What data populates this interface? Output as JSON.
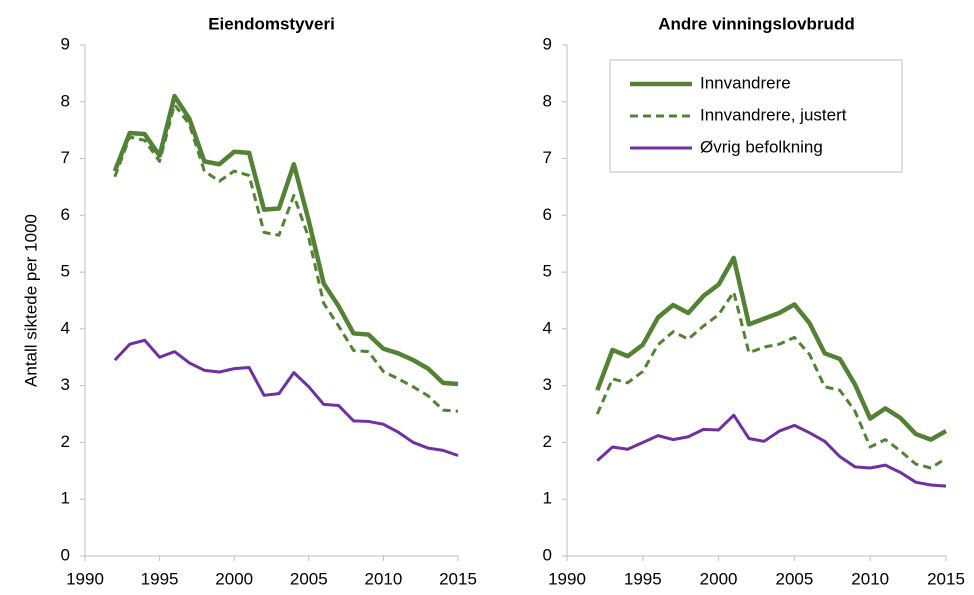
{
  "chart_data": [
    {
      "type": "line",
      "title": "Eiendomstyveri",
      "y_label": "Antall siktede per 1000",
      "x": [
        1992,
        1993,
        1994,
        1995,
        1996,
        1997,
        1998,
        1999,
        2000,
        2001,
        2002,
        2003,
        2004,
        2005,
        2006,
        2007,
        2008,
        2009,
        2010,
        2011,
        2012,
        2013,
        2014,
        2015
      ],
      "series": [
        {
          "color": "#548235",
          "dash": false,
          "values": [
            6.78,
            7.45,
            7.43,
            7.05,
            8.1,
            7.7,
            6.95,
            6.9,
            7.12,
            7.1,
            6.1,
            6.12,
            6.9,
            5.9,
            4.8,
            4.4,
            3.92,
            3.9,
            3.65,
            3.57,
            3.45,
            3.3,
            3.05,
            3.03
          ]
        },
        {
          "color": "#548235",
          "dash": true,
          "values": [
            6.68,
            7.38,
            7.32,
            6.95,
            7.95,
            7.6,
            6.78,
            6.6,
            6.78,
            6.7,
            5.7,
            5.65,
            6.35,
            5.6,
            4.45,
            4.05,
            3.62,
            3.6,
            3.25,
            3.12,
            2.98,
            2.82,
            2.57,
            2.55
          ]
        },
        {
          "color": "#7030a0",
          "dash": false,
          "values": [
            3.45,
            3.73,
            3.8,
            3.5,
            3.6,
            3.4,
            3.27,
            3.24,
            3.3,
            3.32,
            2.83,
            2.86,
            3.23,
            2.98,
            2.67,
            2.65,
            2.38,
            2.37,
            2.32,
            2.18,
            2.0,
            1.9,
            1.86,
            1.77
          ]
        }
      ],
      "xlim": [
        1990,
        2015
      ],
      "xticks": [
        1990,
        1995,
        2000,
        2005,
        2010,
        2015
      ],
      "ylim": [
        0,
        9
      ],
      "yticks": [
        0,
        1,
        2,
        3,
        4,
        5,
        6,
        7,
        8,
        9
      ]
    },
    {
      "type": "line",
      "title": "Andre vinningslovbrudd",
      "legend": "upper center",
      "x": [
        1992,
        1993,
        1994,
        1995,
        1996,
        1997,
        1998,
        1999,
        2000,
        2001,
        2002,
        2003,
        2004,
        2005,
        2006,
        2007,
        2008,
        2009,
        2010,
        2011,
        2012,
        2013,
        2014,
        2015
      ],
      "series": [
        {
          "name": "Innvandrere",
          "color": "#548235",
          "dash": false,
          "values": [
            2.92,
            3.63,
            3.52,
            3.72,
            4.2,
            4.42,
            4.28,
            4.58,
            4.78,
            5.25,
            4.08,
            4.18,
            4.28,
            4.43,
            4.1,
            3.57,
            3.47,
            3.02,
            2.42,
            2.6,
            2.43,
            2.15,
            2.05,
            2.2
          ]
        },
        {
          "name": "Innvandrere, justert",
          "color": "#548235",
          "dash": true,
          "values": [
            2.5,
            3.12,
            3.05,
            3.25,
            3.72,
            3.95,
            3.82,
            4.05,
            4.25,
            4.65,
            3.58,
            3.68,
            3.73,
            3.85,
            3.55,
            2.98,
            2.92,
            2.55,
            1.92,
            2.05,
            1.85,
            1.62,
            1.55,
            1.72
          ]
        },
        {
          "name": "Øvrig befolkning",
          "color": "#7030a0",
          "dash": false,
          "values": [
            1.68,
            1.92,
            1.88,
            2.0,
            2.12,
            2.05,
            2.1,
            2.23,
            2.22,
            2.48,
            2.07,
            2.02,
            2.2,
            2.3,
            2.17,
            2.02,
            1.75,
            1.57,
            1.55,
            1.6,
            1.47,
            1.3,
            1.25,
            1.23
          ]
        }
      ],
      "xlim": [
        1990,
        2015
      ],
      "xticks": [
        1990,
        1995,
        2000,
        2005,
        2010,
        2015
      ],
      "ylim": [
        0,
        9
      ],
      "yticks": [
        0,
        1,
        2,
        3,
        4,
        5,
        6,
        7,
        8,
        9
      ]
    }
  ]
}
